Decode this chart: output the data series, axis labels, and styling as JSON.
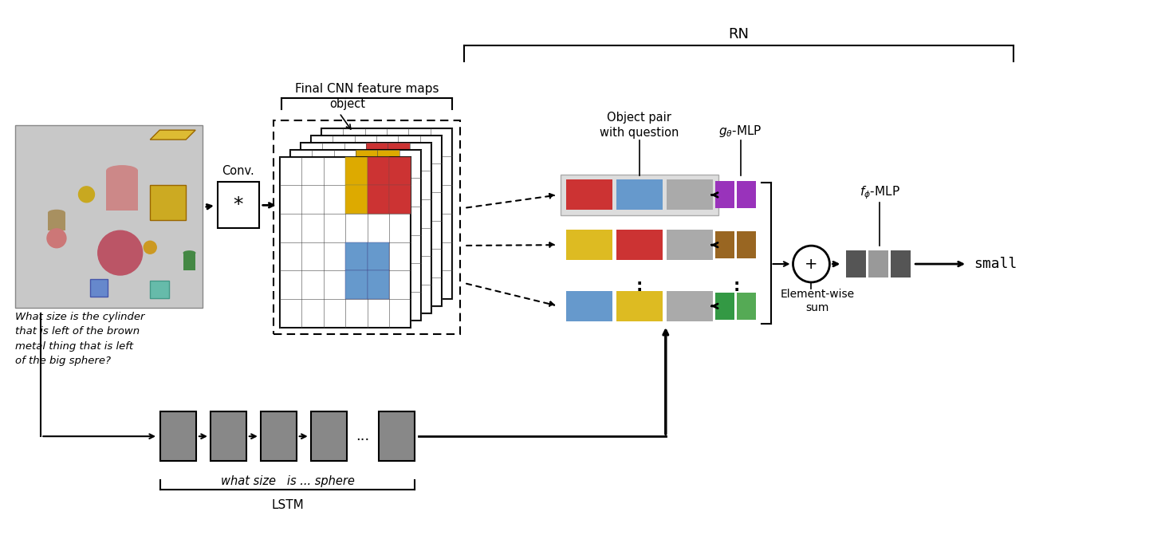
{
  "bg_color": "#ffffff",
  "question_text": "What size is the cylinder\nthat is left of the brown\nmetal thing that is left\nof the big sphere?",
  "conv_label": "Conv.",
  "object_label": "object",
  "cnn_label": "Final CNN feature maps",
  "rn_label": "RN",
  "obj_pair_label": "Object pair\nwith question",
  "g_theta_label": "$g_{\\theta}$-MLP",
  "f_phi_label": "$f_{\\phi}$-MLP",
  "element_wise_label": "Element-wise\nsum",
  "lstm_label": "LSTM",
  "output_label": "small",
  "what_size_label": "what size   is ... sphere",
  "row1_colors": [
    "#cc3333",
    "#6699cc",
    "#aaaaaa"
  ],
  "row2_colors": [
    "#ddbb22",
    "#cc3333",
    "#aaaaaa"
  ],
  "row3_colors": [
    "#6699cc",
    "#ddbb22",
    "#aaaaaa"
  ],
  "g_out1_colors": [
    "#9933bb",
    "#9933bb"
  ],
  "g_out2_colors": [
    "#996622",
    "#996622"
  ],
  "g_out3_colors": [
    "#339944",
    "#55aa55"
  ],
  "f_out_colors": [
    "#555555",
    "#999999",
    "#555555"
  ],
  "cnn_highlight_red": "#cc3333",
  "cnn_highlight_blue": "#6699cc",
  "cnn_highlight_yellow": "#ddaa00",
  "scene_bg": "#bbbbbb",
  "lstm_box_color": "#888888"
}
